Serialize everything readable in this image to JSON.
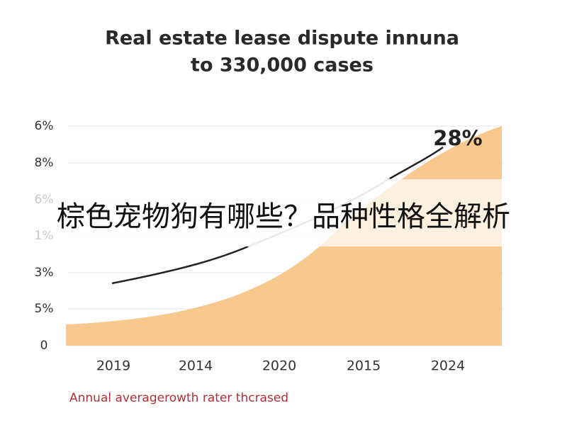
{
  "title_lines": [
    "Real estate lease dispute innuna",
    "to 330,000 cases"
  ],
  "y_axis_labels": [
    "6%",
    "8%",
    "6%",
    "1%",
    "3%",
    "5%",
    "0"
  ],
  "x_axis_labels": [
    "2019",
    "2014",
    "2020",
    "2015",
    "2024"
  ],
  "callout": "28%",
  "footnote": "Annual averagerowth rater thcrased",
  "banner": "棕色宠物狗有哪些？品种性格全解析"
}
